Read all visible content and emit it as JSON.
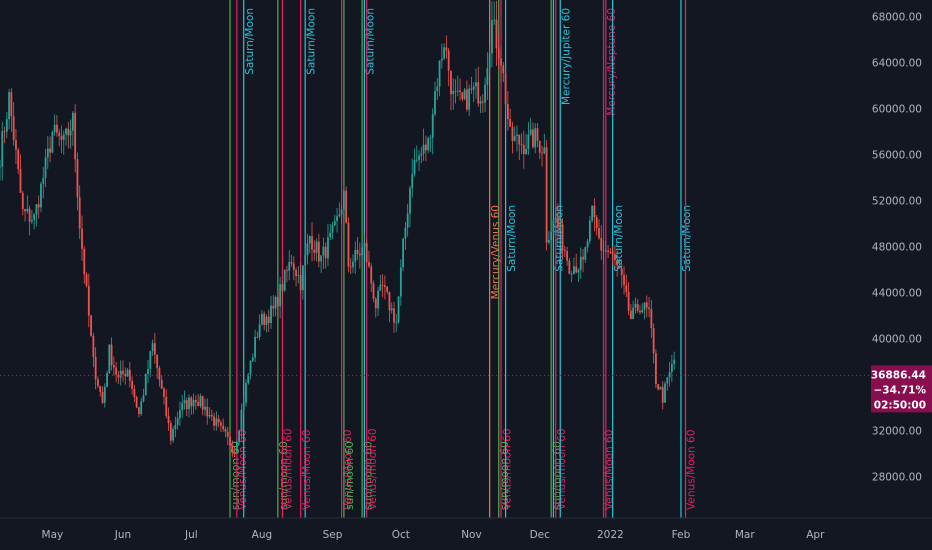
{
  "chart_data": {
    "type": "candlestick",
    "title": "",
    "xlabel": "",
    "ylabel": "",
    "ylim": [
      24500,
      69500
    ],
    "y_ticks": [
      28000,
      32000,
      36000,
      40000,
      44000,
      48000,
      52000,
      56000,
      60000,
      64000,
      68000
    ],
    "y_tick_labels": [
      "28000.00",
      "32000.00",
      "36000.00",
      "40000.00",
      "44000.00",
      "48000.00",
      "52000.00",
      "56000.00",
      "60000.00",
      "64000.00",
      "68000.00"
    ],
    "x_ticks": [
      "2021-05-01",
      "2021-06-01",
      "2021-07-01",
      "2021-08-01",
      "2021-09-01",
      "2021-10-01",
      "2021-11-01",
      "2021-12-01",
      "2022-01-01",
      "2022-02-01",
      "2022-03-01",
      "2022-04-01"
    ],
    "x_tick_labels": [
      "May",
      "Jun",
      "Jul",
      "Aug",
      "Sep",
      "Oct",
      "Nov",
      "Dec",
      "2022",
      "Feb",
      "Mar",
      "Apr"
    ],
    "xlim": [
      "2021-04-08",
      "2022-04-25"
    ],
    "grid": false,
    "colors": {
      "up": "#26a69a",
      "down": "#ef5350",
      "background": "#131722",
      "tag": "#880e4f"
    },
    "price_points": [
      [
        "2021-04-08",
        56000
      ],
      [
        "2021-04-12",
        61000
      ],
      [
        "2021-04-18",
        51000
      ],
      [
        "2021-04-23",
        50500
      ],
      [
        "2021-04-28",
        55000
      ],
      [
        "2021-05-01",
        58000
      ],
      [
        "2021-05-06",
        57000
      ],
      [
        "2021-05-10",
        59000
      ],
      [
        "2021-05-13",
        50000
      ],
      [
        "2021-05-19",
        38000
      ],
      [
        "2021-05-23",
        34500
      ],
      [
        "2021-05-26",
        39000
      ],
      [
        "2021-05-30",
        36500
      ],
      [
        "2021-06-03",
        37500
      ],
      [
        "2021-06-08",
        33500
      ],
      [
        "2021-06-14",
        39500
      ],
      [
        "2021-06-18",
        35500
      ],
      [
        "2021-06-22",
        31500
      ],
      [
        "2021-06-26",
        34000
      ],
      [
        "2021-07-03",
        35000
      ],
      [
        "2021-07-09",
        33500
      ],
      [
        "2021-07-15",
        31800
      ],
      [
        "2021-07-20",
        30500
      ],
      [
        "2021-07-26",
        37000
      ],
      [
        "2021-07-31",
        41500
      ],
      [
        "2021-08-06",
        42500
      ],
      [
        "2021-08-14",
        47000
      ],
      [
        "2021-08-18",
        45000
      ],
      [
        "2021-08-22",
        49000
      ],
      [
        "2021-08-27",
        47000
      ],
      [
        "2021-09-02",
        49500
      ],
      [
        "2021-09-06",
        52500
      ],
      [
        "2021-09-08",
        46500
      ],
      [
        "2021-09-15",
        48000
      ],
      [
        "2021-09-20",
        43000
      ],
      [
        "2021-09-23",
        44500
      ],
      [
        "2021-09-29",
        41500
      ],
      [
        "2021-10-02",
        48000
      ],
      [
        "2021-10-06",
        55000
      ],
      [
        "2021-10-13",
        57000
      ],
      [
        "2021-10-16",
        61500
      ],
      [
        "2021-10-20",
        66000
      ],
      [
        "2021-10-24",
        61000
      ],
      [
        "2021-10-28",
        60500
      ],
      [
        "2021-11-01",
        61500
      ],
      [
        "2021-11-06",
        61500
      ],
      [
        "2021-11-10",
        67500
      ],
      [
        "2021-11-14",
        64500
      ],
      [
        "2021-11-18",
        57500
      ],
      [
        "2021-11-24",
        57000
      ],
      [
        "2021-11-29",
        57500
      ],
      [
        "2021-12-03",
        56500
      ],
      [
        "2021-12-04",
        49000
      ],
      [
        "2021-12-08",
        50500
      ],
      [
        "2021-12-14",
        46500
      ],
      [
        "2021-12-20",
        46500
      ],
      [
        "2021-12-24",
        50800
      ],
      [
        "2021-12-28",
        48000
      ],
      [
        "2022-01-01",
        47500
      ],
      [
        "2022-01-05",
        45800
      ],
      [
        "2022-01-10",
        41800
      ],
      [
        "2022-01-14",
        43000
      ],
      [
        "2022-01-18",
        42300
      ],
      [
        "2022-01-21",
        36500
      ],
      [
        "2022-01-24",
        35000
      ],
      [
        "2022-01-27",
        37000
      ],
      [
        "2022-01-29",
        38200
      ]
    ],
    "last_price": {
      "value": 36886.44,
      "price_label": "36886.44",
      "change": "−34.71%",
      "countdown": "02:50:00"
    },
    "events": [
      {
        "date": "2021-07-18",
        "label": "sun/moon 60",
        "color": "#4caf50",
        "label_pos": "bottom"
      },
      {
        "date": "2021-07-21",
        "label": "Venus/Moon 60",
        "color": "#e91e63",
        "label_pos": "bottom"
      },
      {
        "date": "2021-07-24",
        "label": "Saturn/Moon",
        "color": "#26c6da",
        "label_pos": "top"
      },
      {
        "date": "2021-08-08",
        "label": "sun/moon 60",
        "color": "#4caf50",
        "label_pos": "bottom"
      },
      {
        "date": "2021-08-10",
        "label": "Venus/moon 60",
        "color": "#e91e63",
        "label_pos": "bottom"
      },
      {
        "date": "2021-08-20",
        "label": "Saturn/Moon",
        "color": "#26c6da",
        "label_pos": "top"
      },
      {
        "date": "2021-08-18",
        "label": "Venus/Moon 60",
        "color": "#e91e63",
        "label_pos": "bottom"
      },
      {
        "date": "2021-09-05",
        "label": "Venus/Moon 60",
        "color": "#e91e63",
        "label_pos": "bottom"
      },
      {
        "date": "2021-09-06",
        "label": "sun/moon 60",
        "color": "#4caf50",
        "label_pos": "bottom"
      },
      {
        "date": "2021-09-14",
        "label": "sun/moon 60",
        "color": "#4caf50",
        "label_pos": "bottom"
      },
      {
        "date": "2021-09-15",
        "label": "Saturn/Moon",
        "color": "#26c6da",
        "label_pos": "top"
      },
      {
        "date": "2021-09-16",
        "label": "Venus/moon 60",
        "color": "#e91e63",
        "label_pos": "bottom"
      },
      {
        "date": "2021-11-09",
        "label": "Mercury/Venus 60",
        "color": "#ff7043",
        "label_pos": "middle"
      },
      {
        "date": "2021-11-13",
        "label": "sun/moon 60",
        "color": "#4caf50",
        "label_pos": "bottom"
      },
      {
        "date": "2021-11-14",
        "label": "Venus/moon 60",
        "color": "#e91e63",
        "label_pos": "bottom"
      },
      {
        "date": "2021-11-16",
        "label": "Saturn/Moon",
        "color": "#26c6da",
        "label_pos": "middle"
      },
      {
        "date": "2021-12-06",
        "label": "sun/moon 60",
        "color": "#4caf50",
        "label_pos": "bottom"
      },
      {
        "date": "2021-12-07",
        "label": "Saturn/Moon",
        "color": "#26c6da",
        "label_pos": "middle"
      },
      {
        "date": "2021-12-08",
        "label": "Venus/moon 60",
        "color": "#e91e63",
        "label_pos": "bottom"
      },
      {
        "date": "2021-12-10",
        "label": "Mercury/Jupiter 60",
        "color": "#26c6da",
        "label_pos": "top"
      },
      {
        "date": "2021-12-29",
        "label": "Venus/Moon 60",
        "color": "#e91e63",
        "label_pos": "bottom"
      },
      {
        "date": "2021-12-30",
        "label": "Mercury/Neptune 60",
        "color": "#e91e63",
        "label_pos": "top"
      },
      {
        "date": "2022-01-02",
        "label": "Saturn/Moon",
        "color": "#26c6da",
        "label_pos": "middle"
      },
      {
        "date": "2022-02-01",
        "label": "Saturn/Moon",
        "color": "#26c6da",
        "label_pos": "middle"
      },
      {
        "date": "2022-02-03",
        "label": "Venus/Moon 60",
        "color": "#e91e63",
        "label_pos": "bottom"
      }
    ]
  }
}
